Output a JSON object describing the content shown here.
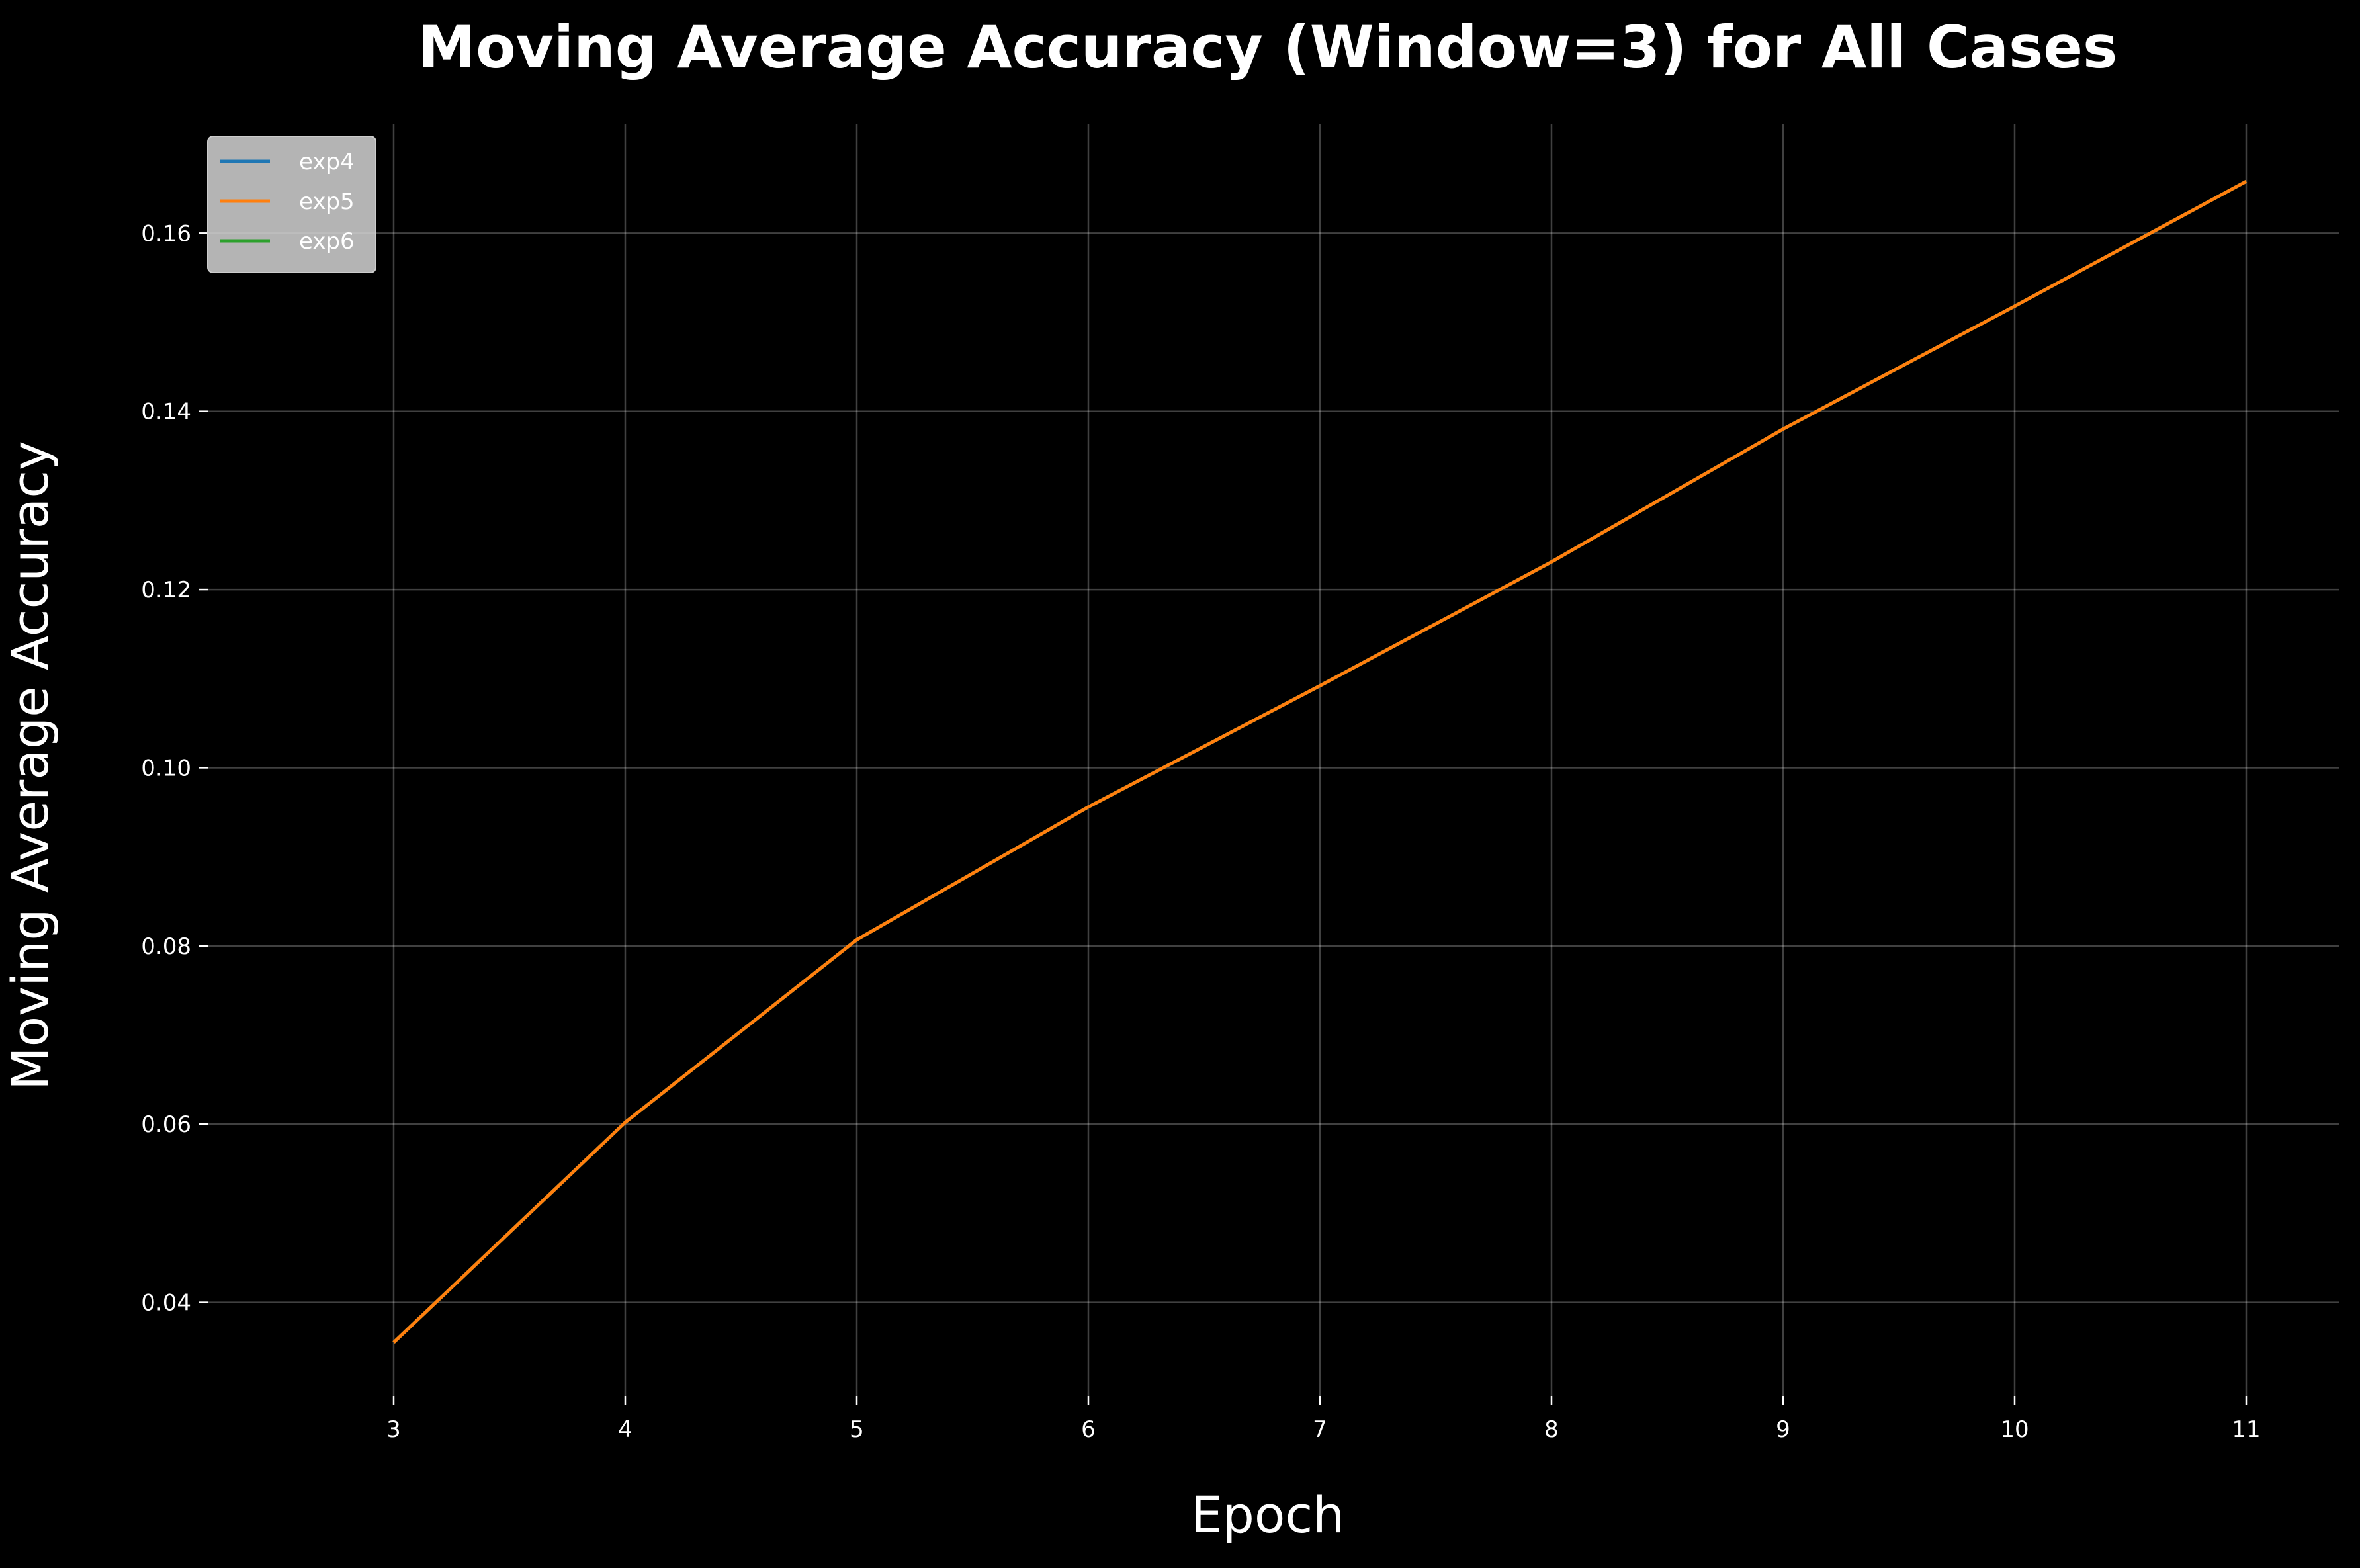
{
  "chart_data": {
    "type": "line",
    "title": "Moving Average Accuracy (Window=3) for All Cases",
    "xlabel": "Epoch",
    "ylabel": "Moving Average Accuracy",
    "x": [
      3,
      4,
      5,
      6,
      7,
      8,
      9,
      10,
      11
    ],
    "xticks": [
      "3",
      "4",
      "5",
      "6",
      "7",
      "8",
      "9",
      "10",
      "11"
    ],
    "yticks": [
      "0.04",
      "0.06",
      "0.08",
      "0.10",
      "0.12",
      "0.14",
      "0.16"
    ],
    "xlim": [
      2.2,
      11.4
    ],
    "ylim": [
      0.0295,
      0.1722
    ],
    "grid": true,
    "legend_position": "top-left",
    "background": "#000000",
    "series": [
      {
        "name": "exp4",
        "color": "#1f77b4",
        "values": [
          0.0355,
          0.0602,
          0.0807,
          0.0956,
          0.1092,
          0.1231,
          0.138,
          0.1518,
          0.1658
        ]
      },
      {
        "name": "exp6",
        "color": "#2ca02c",
        "values": [
          0.0355,
          0.0602,
          0.0807,
          0.0956,
          0.1092,
          0.1231,
          0.138,
          0.1518,
          0.1658
        ]
      },
      {
        "name": "exp5",
        "color": "#ff7f0e",
        "values": [
          0.0355,
          0.0602,
          0.0807,
          0.0956,
          0.1092,
          0.1231,
          0.138,
          0.1518,
          0.1658
        ]
      }
    ],
    "legend_order": [
      "exp4",
      "exp5",
      "exp6"
    ]
  }
}
